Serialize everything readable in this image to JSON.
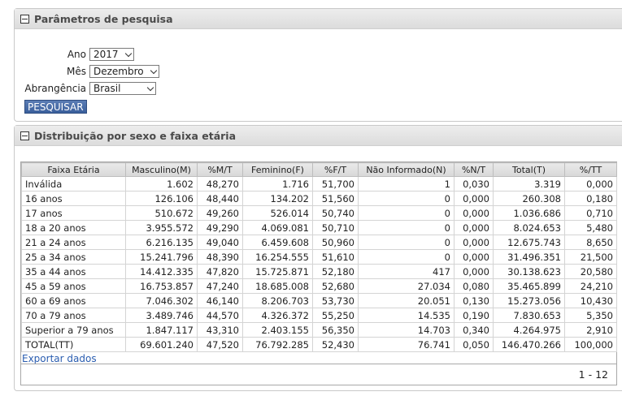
{
  "search_panel": {
    "title": "Parâmetros de pesquisa",
    "ano": {
      "label": "Ano",
      "value": "2017"
    },
    "mes": {
      "label": "Mês",
      "value": "Dezembro"
    },
    "abrangencia": {
      "label": "Abrangência",
      "value": "Brasil"
    },
    "button": "PESQUISAR"
  },
  "results_panel": {
    "title": "Distribuição por sexo e faixa etária",
    "columns": [
      "Faixa Etária",
      "Masculino(M)",
      "%M/T",
      "Feminino(F)",
      "%F/T",
      "Não Informado(N)",
      "%N/T",
      "Total(T)",
      "%/TT"
    ],
    "rows": [
      [
        "Inválida",
        "1.602",
        "48,270",
        "1.716",
        "51,700",
        "1",
        "0,030",
        "3.319",
        "0,000"
      ],
      [
        "16 anos",
        "126.106",
        "48,440",
        "134.202",
        "51,560",
        "0",
        "0,000",
        "260.308",
        "0,180"
      ],
      [
        "17 anos",
        "510.672",
        "49,260",
        "526.014",
        "50,740",
        "0",
        "0,000",
        "1.036.686",
        "0,710"
      ],
      [
        "18 a 20 anos",
        "3.955.572",
        "49,290",
        "4.069.081",
        "50,710",
        "0",
        "0,000",
        "8.024.653",
        "5,480"
      ],
      [
        "21 a 24 anos",
        "6.216.135",
        "49,040",
        "6.459.608",
        "50,960",
        "0",
        "0,000",
        "12.675.743",
        "8,650"
      ],
      [
        "25 a 34 anos",
        "15.241.796",
        "48,390",
        "16.254.555",
        "51,610",
        "0",
        "0,000",
        "31.496.351",
        "21,500"
      ],
      [
        "35 a 44 anos",
        "14.412.335",
        "47,820",
        "15.725.871",
        "52,180",
        "417",
        "0,000",
        "30.138.623",
        "20,580"
      ],
      [
        "45 a 59 anos",
        "16.753.857",
        "47,240",
        "18.685.008",
        "52,680",
        "27.034",
        "0,080",
        "35.465.899",
        "24,210"
      ],
      [
        "60 a 69 anos",
        "7.046.302",
        "46,140",
        "8.206.703",
        "53,730",
        "20.051",
        "0,130",
        "15.273.056",
        "10,430"
      ],
      [
        "70 a 79 anos",
        "3.489.746",
        "44,570",
        "4.326.372",
        "55,250",
        "14.535",
        "0,190",
        "7.830.653",
        "5,350"
      ],
      [
        "Superior a 79 anos",
        "1.847.117",
        "43,310",
        "2.403.155",
        "56,350",
        "14.703",
        "0,340",
        "4.264.975",
        "2,910"
      ],
      [
        "TOTAL(TT)",
        "69.601.240",
        "47,520",
        "76.792.285",
        "52,430",
        "76.741",
        "0,050",
        "146.470.266",
        "100,000"
      ]
    ],
    "export_link": "Exportar dados",
    "pager": "1 - 12"
  }
}
